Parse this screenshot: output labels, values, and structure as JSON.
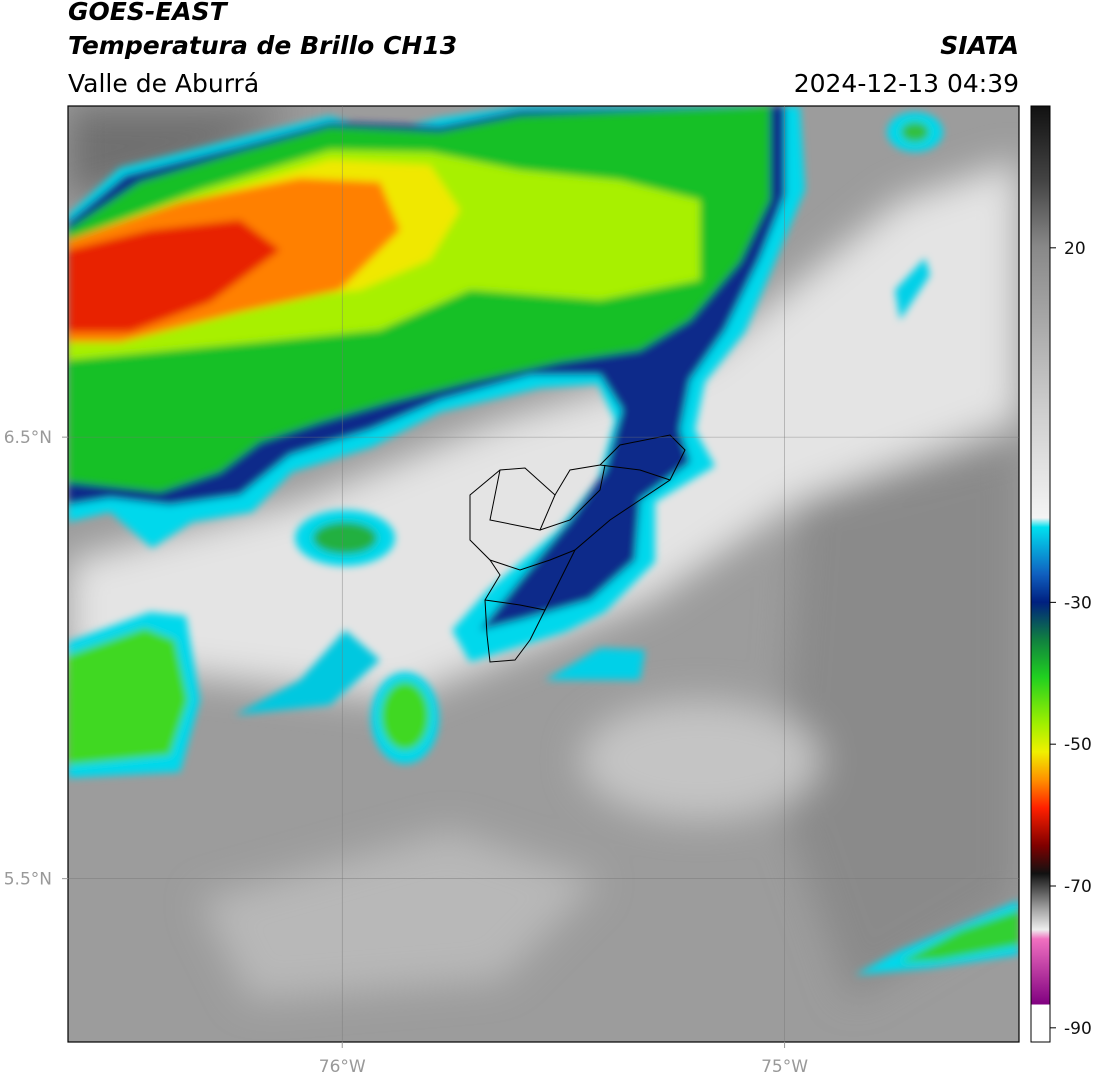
{
  "header": {
    "satellite": "GOES-EAST",
    "product": "Temperatura de Brillo CH13",
    "region": "Valle de Aburrá",
    "source": "SIATA",
    "datetime": "2024-12-13 04:39"
  },
  "map": {
    "xlim": [
      -76.62,
      -74.47
    ],
    "ylim": [
      5.13,
      7.25
    ],
    "xticks": [
      {
        "value": -76,
        "label": "76°W"
      },
      {
        "value": -75,
        "label": "75°W"
      }
    ],
    "yticks": [
      {
        "value": 6.5,
        "label": "6.5°N"
      },
      {
        "value": 5.5,
        "label": "5.5°N"
      }
    ],
    "grid": true
  },
  "colorbar": {
    "lim": [
      -92,
      40
    ],
    "ticks": [
      20,
      -30,
      -50,
      -70,
      -90
    ]
  }
}
